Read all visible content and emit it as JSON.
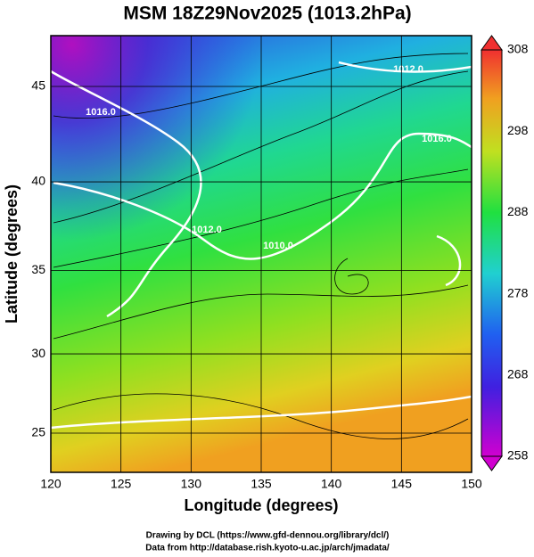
{
  "title": "MSM 18Z29Nov2025 (1013.2hPa)",
  "x_axis": {
    "label": "Longitude (degrees)",
    "ticks": [
      120,
      125,
      130,
      135,
      140,
      145,
      150
    ],
    "xlim": [
      120,
      150
    ]
  },
  "y_axis": {
    "label": "Latitude  (degrees)",
    "ticks": [
      25,
      30,
      35,
      40,
      45
    ]
  },
  "colorbar": {
    "ticks": [
      258,
      268,
      278,
      288,
      298,
      308
    ]
  },
  "contour_labels": [
    "1016.0",
    "1012.0",
    "1016.0",
    "1012.0",
    "1010.0"
  ],
  "credits": [
    "Drawing by DCL (https://www.gfd-dennou.org/library/dcl/)",
    "Data from http://database.rish.kyoto-u.ac.jp/arch/jmadata/"
  ]
}
